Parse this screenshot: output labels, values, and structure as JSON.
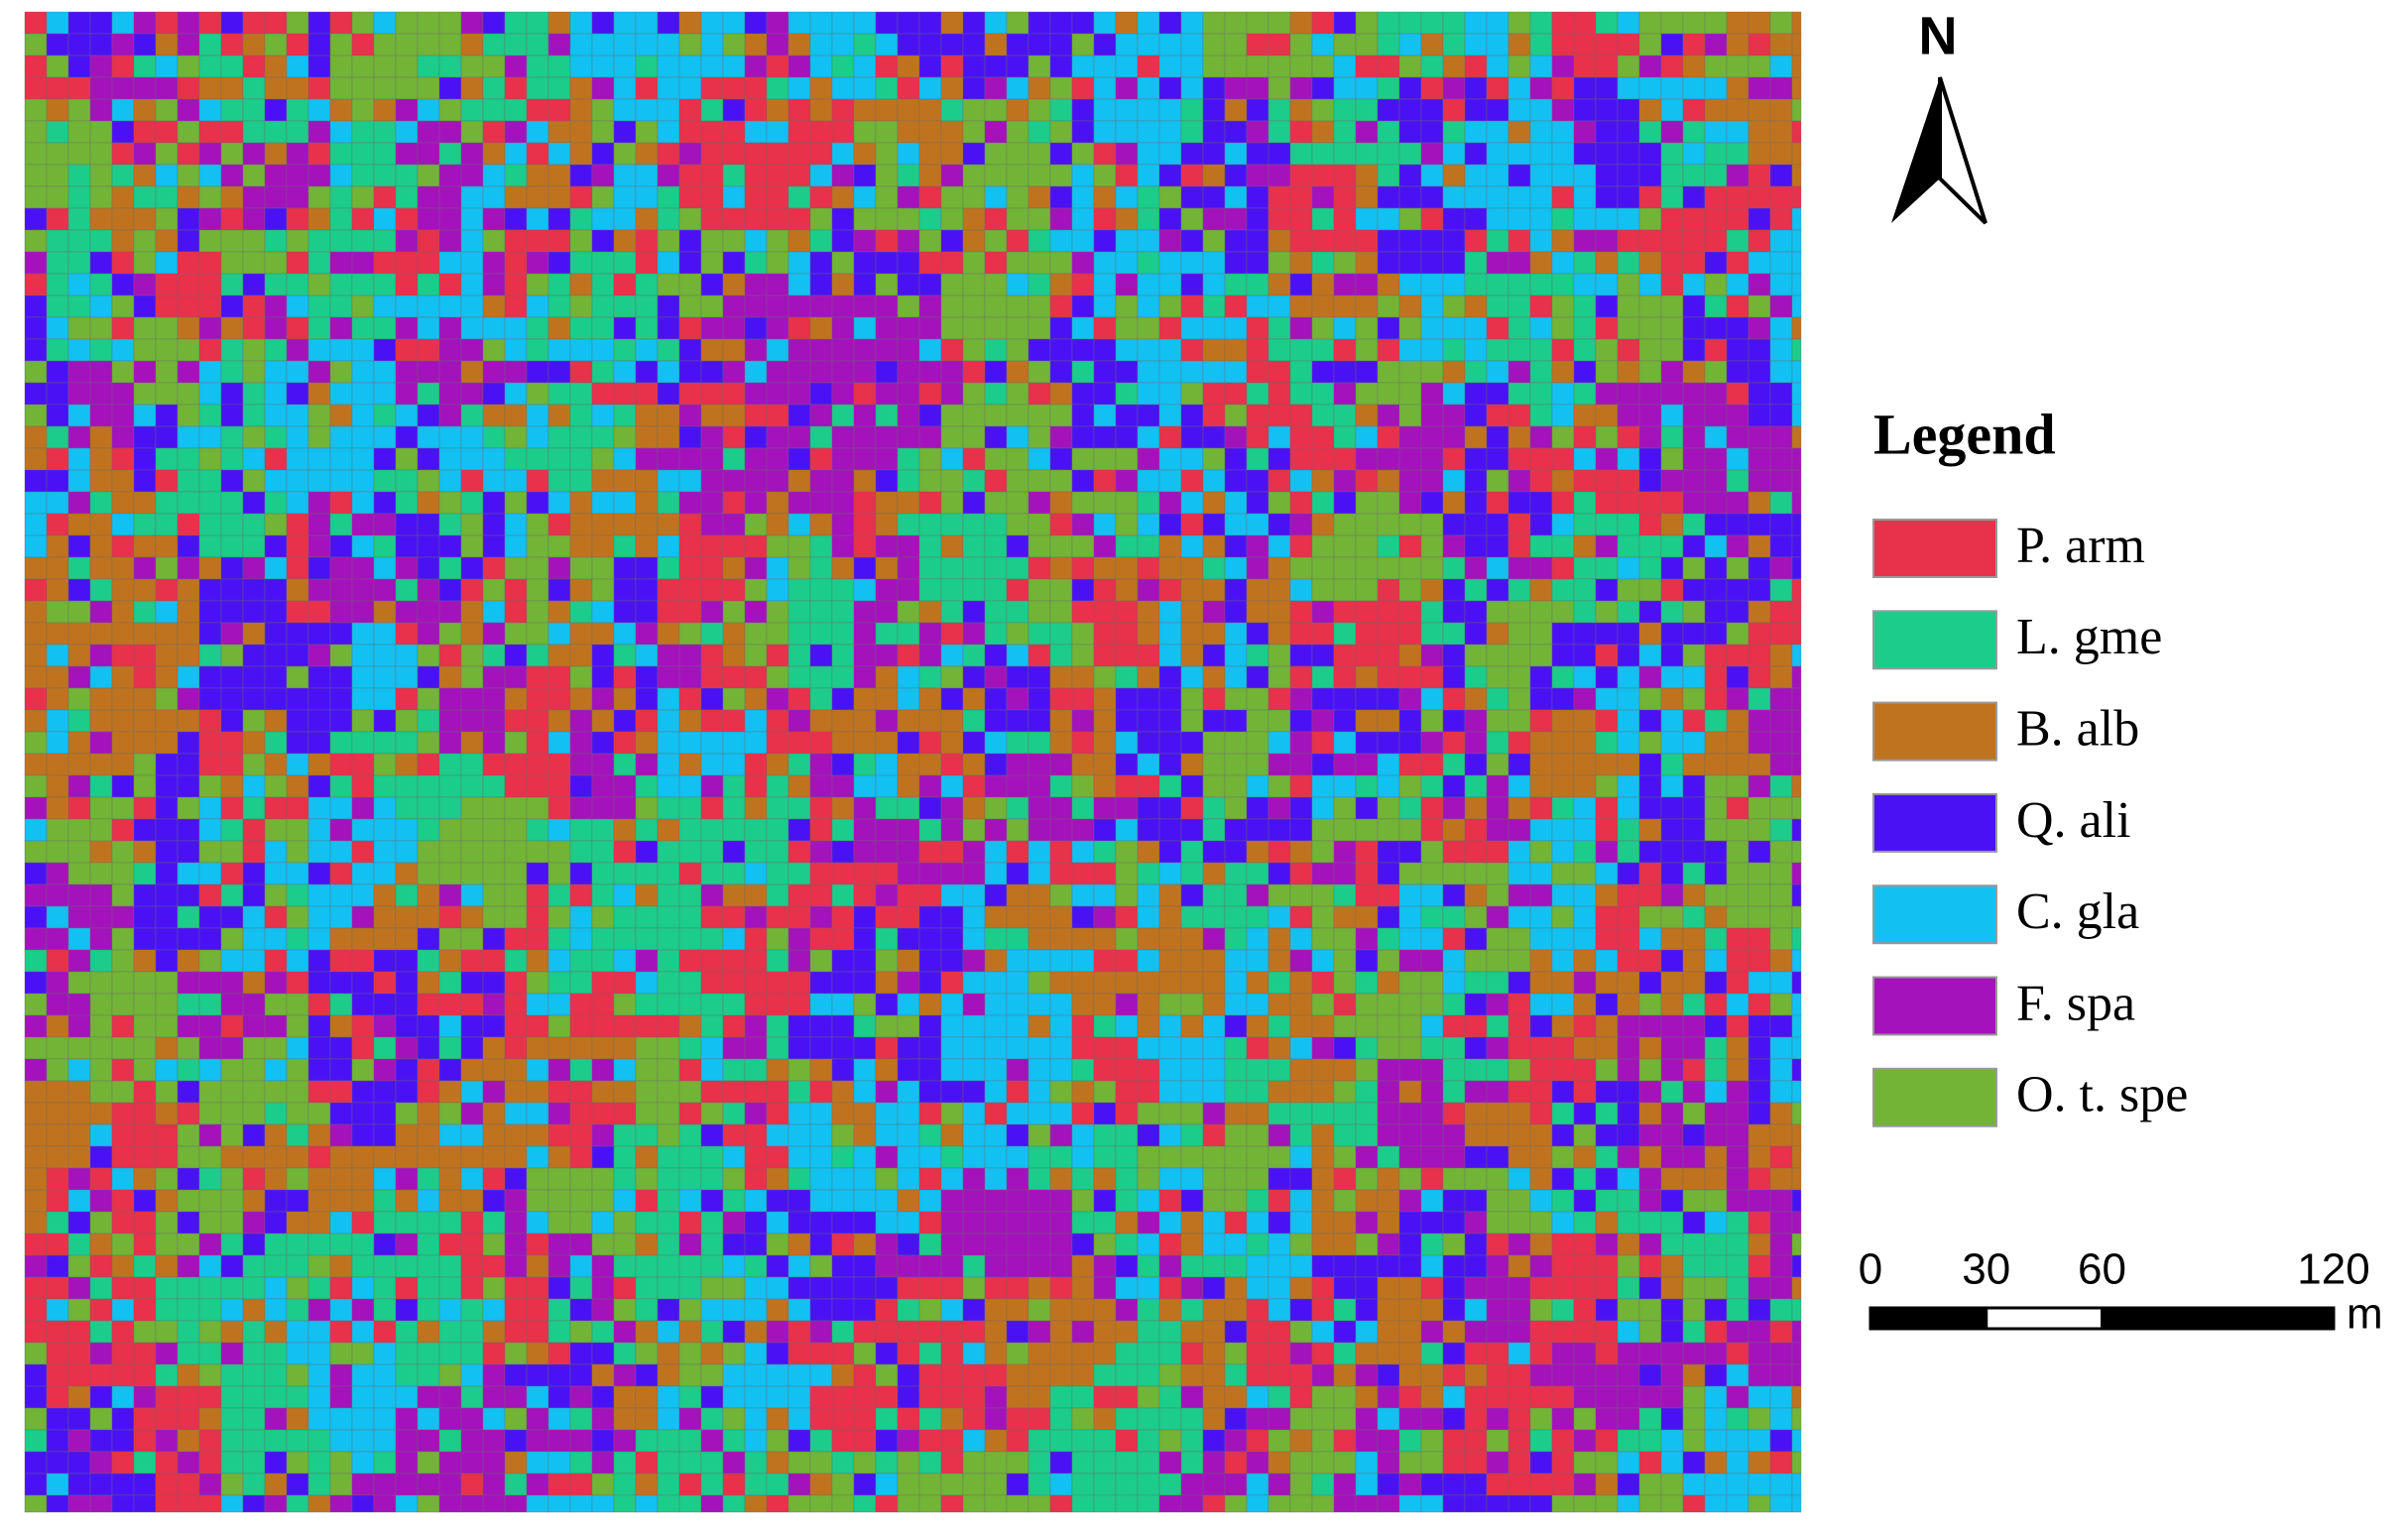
{
  "north_arrow": {
    "label": "N"
  },
  "legend": {
    "title": "Legend",
    "items": [
      {
        "label": "P. arm",
        "color": "#e8314b"
      },
      {
        "label": "L. gme",
        "color": "#1ccc8a"
      },
      {
        "label": "B. alb",
        "color": "#c0731f"
      },
      {
        "label": "Q. ali",
        "color": "#4a12f2"
      },
      {
        "label": "C. gla",
        "color": "#12c0f2"
      },
      {
        "label": "F. spa",
        "color": "#a412bc"
      },
      {
        "label": "O. t. spe",
        "color": "#72b436"
      }
    ]
  },
  "scale_bar": {
    "ticks": [
      0,
      30,
      60,
      120
    ],
    "unit": "m"
  }
}
